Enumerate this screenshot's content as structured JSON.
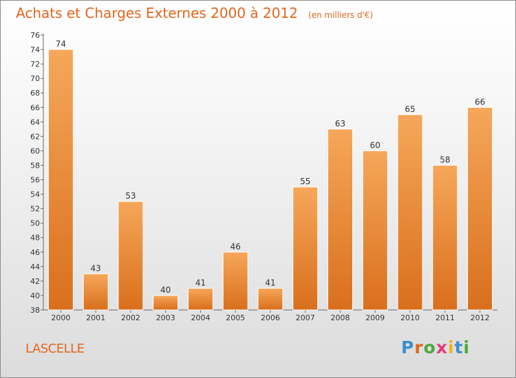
{
  "title": "Achats et Charges Externes 2000 à 2012",
  "unit_note": "(en milliers d'€)",
  "place_name": "LASCELLE",
  "logo": {
    "text": "Proxiti",
    "letter_colors": [
      "#3b8fd0",
      "#e2651e",
      "#4aaa3c",
      "#e23a7a",
      "#f0b21e",
      "#3b8fd0",
      "#4aaa3c"
    ]
  },
  "colors": {
    "bar_top": "#f6a75a",
    "bar_bottom": "#d96f1c",
    "title": "#e2651e"
  },
  "chart_data": {
    "type": "bar",
    "categories": [
      "2000",
      "2001",
      "2002",
      "2003",
      "2004",
      "2005",
      "2006",
      "2007",
      "2008",
      "2009",
      "2010",
      "2011",
      "2012"
    ],
    "values": [
      74,
      43,
      53,
      40,
      41,
      46,
      41,
      55,
      63,
      60,
      65,
      58,
      66
    ],
    "ylim": [
      38,
      76
    ],
    "yticks": [
      38,
      40,
      42,
      44,
      46,
      48,
      50,
      52,
      54,
      56,
      58,
      60,
      62,
      64,
      66,
      68,
      70,
      72,
      74,
      76
    ],
    "grid": false,
    "data_labels": true
  }
}
